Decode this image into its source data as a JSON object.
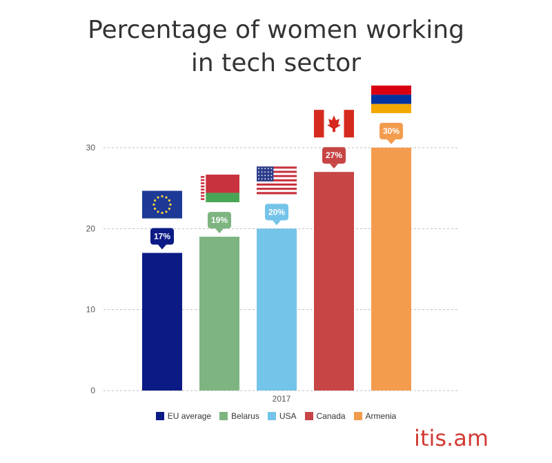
{
  "header": {
    "title_line1": "Percentage of women working",
    "title_line2": "in tech sector"
  },
  "brand": {
    "text": "itis.am",
    "color": "#d23b34"
  },
  "chart_data": {
    "type": "bar",
    "title": "Percentage of women working in tech sector",
    "categories": [
      "2017"
    ],
    "xlabel": "",
    "ylabel": "",
    "ylim": [
      0,
      30
    ],
    "yticks": [
      0,
      10,
      20,
      30
    ],
    "grid": true,
    "legend_position": "bottom",
    "series": [
      {
        "name": "EU average",
        "values": [
          17
        ],
        "label": "17%",
        "color": "#0b1a84",
        "flag": "eu-flag"
      },
      {
        "name": "Belarus",
        "values": [
          19
        ],
        "label": "19%",
        "color": "#7db480",
        "flag": "belarus-flag"
      },
      {
        "name": "USA",
        "values": [
          20
        ],
        "label": "20%",
        "color": "#74c4ea",
        "flag": "usa-flag"
      },
      {
        "name": "Canada",
        "values": [
          27
        ],
        "label": "27%",
        "color": "#c74545",
        "flag": "canada-flag"
      },
      {
        "name": "Armenia",
        "values": [
          30
        ],
        "label": "30%",
        "color": "#f39c4e",
        "flag": "armenia-flag"
      }
    ]
  }
}
